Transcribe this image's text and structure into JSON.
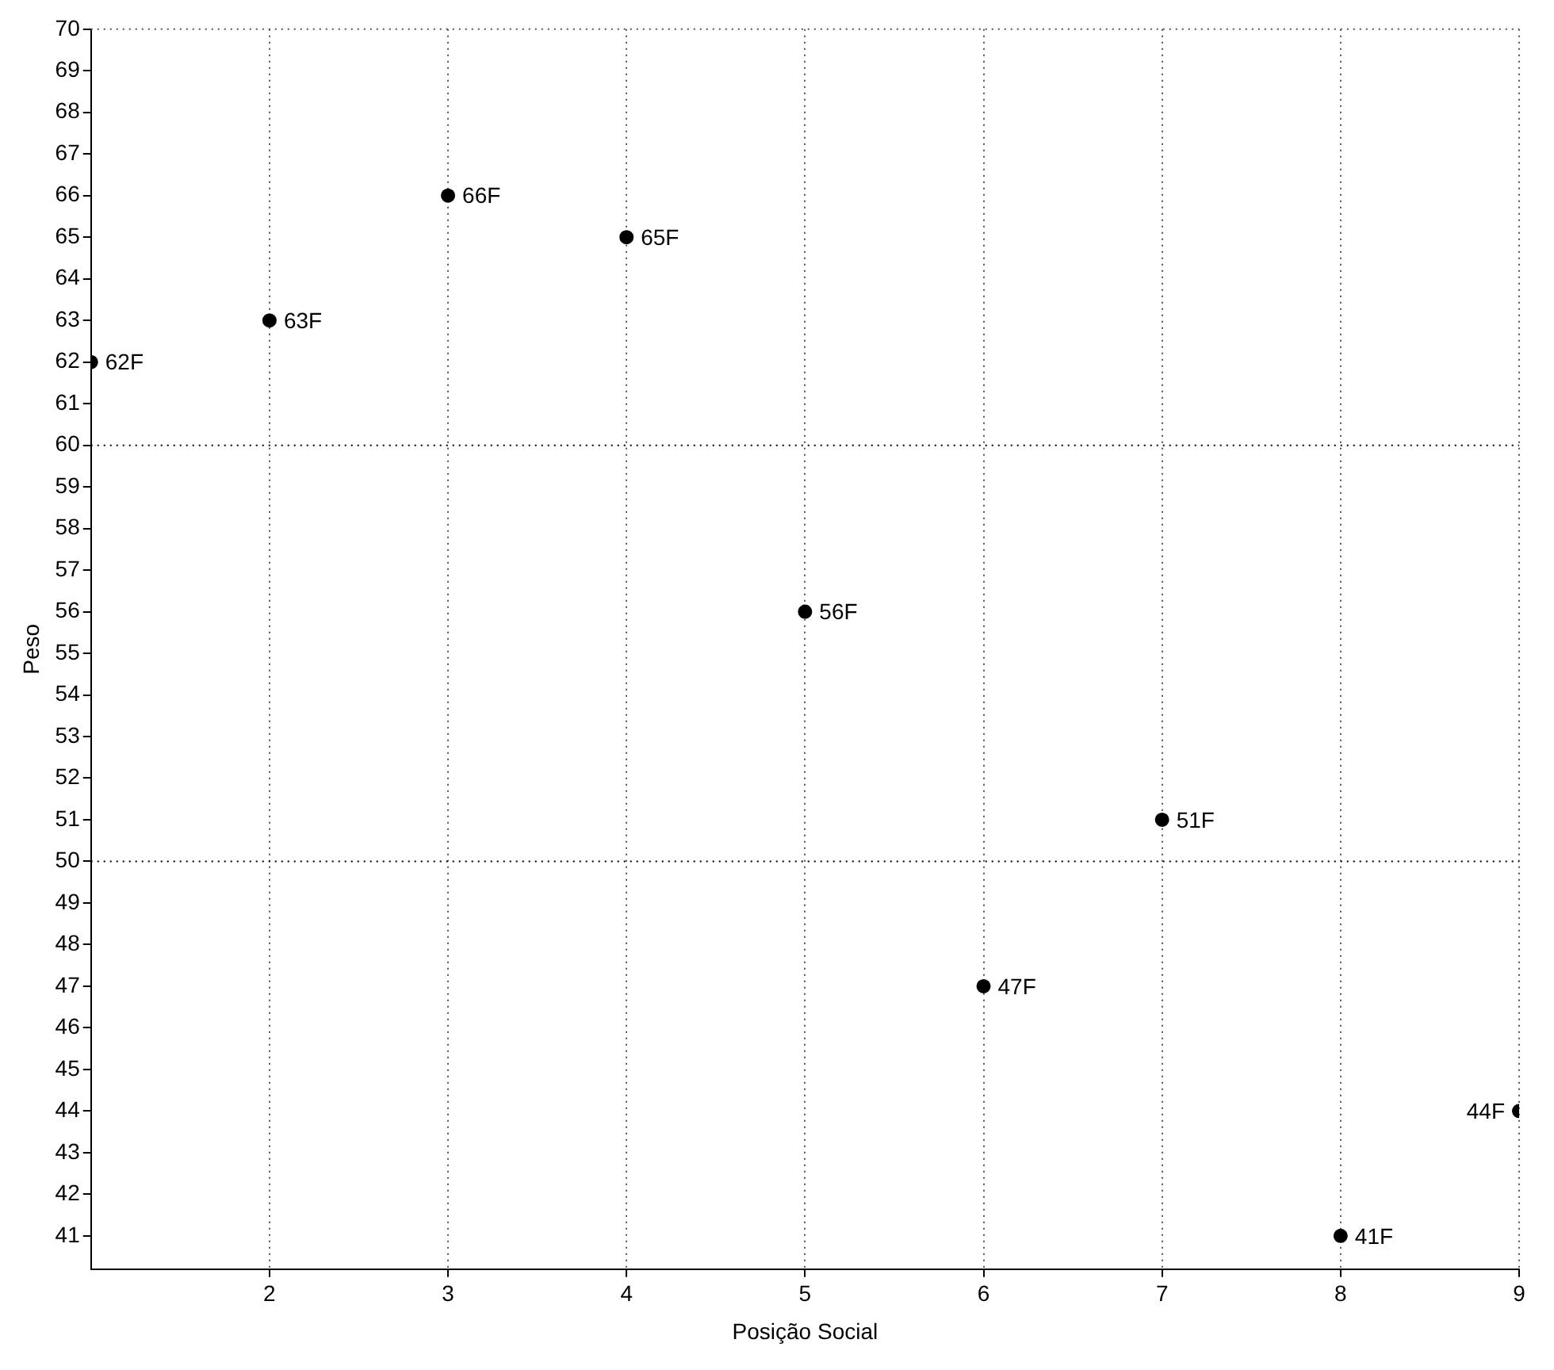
{
  "chart_data": {
    "type": "scatter",
    "xlabel": "Posição Social",
    "ylabel": "Peso",
    "x": [
      1,
      2,
      3,
      4,
      5,
      6,
      7,
      8,
      9
    ],
    "series": [
      {
        "color": "#000000",
        "values": [
          62,
          63,
          66,
          65,
          56,
          47,
          51,
          41,
          44
        ],
        "value_labels": [
          "62F",
          "63F",
          "66F",
          "65F",
          "56F",
          "47F",
          "51F",
          "41F",
          "44F"
        ]
      }
    ],
    "xlim": [
      1,
      9
    ],
    "xticks": [
      2,
      3,
      4,
      5,
      6,
      7,
      8,
      9
    ],
    "ylim": [
      40.2,
      70
    ],
    "yticks": [
      41,
      42,
      43,
      44,
      45,
      46,
      47,
      48,
      49,
      50,
      51,
      52,
      53,
      54,
      55,
      56,
      57,
      58,
      59,
      60,
      61,
      62,
      63,
      64,
      65,
      66,
      67,
      68,
      69,
      70
    ],
    "grid": "x",
    "marker": "circle",
    "legend": false,
    "ref_lines": [
      {
        "axis": "y",
        "value": 50,
        "line_style": "dotted"
      },
      {
        "axis": "y",
        "value": 60,
        "line_style": "dotted"
      }
    ]
  }
}
